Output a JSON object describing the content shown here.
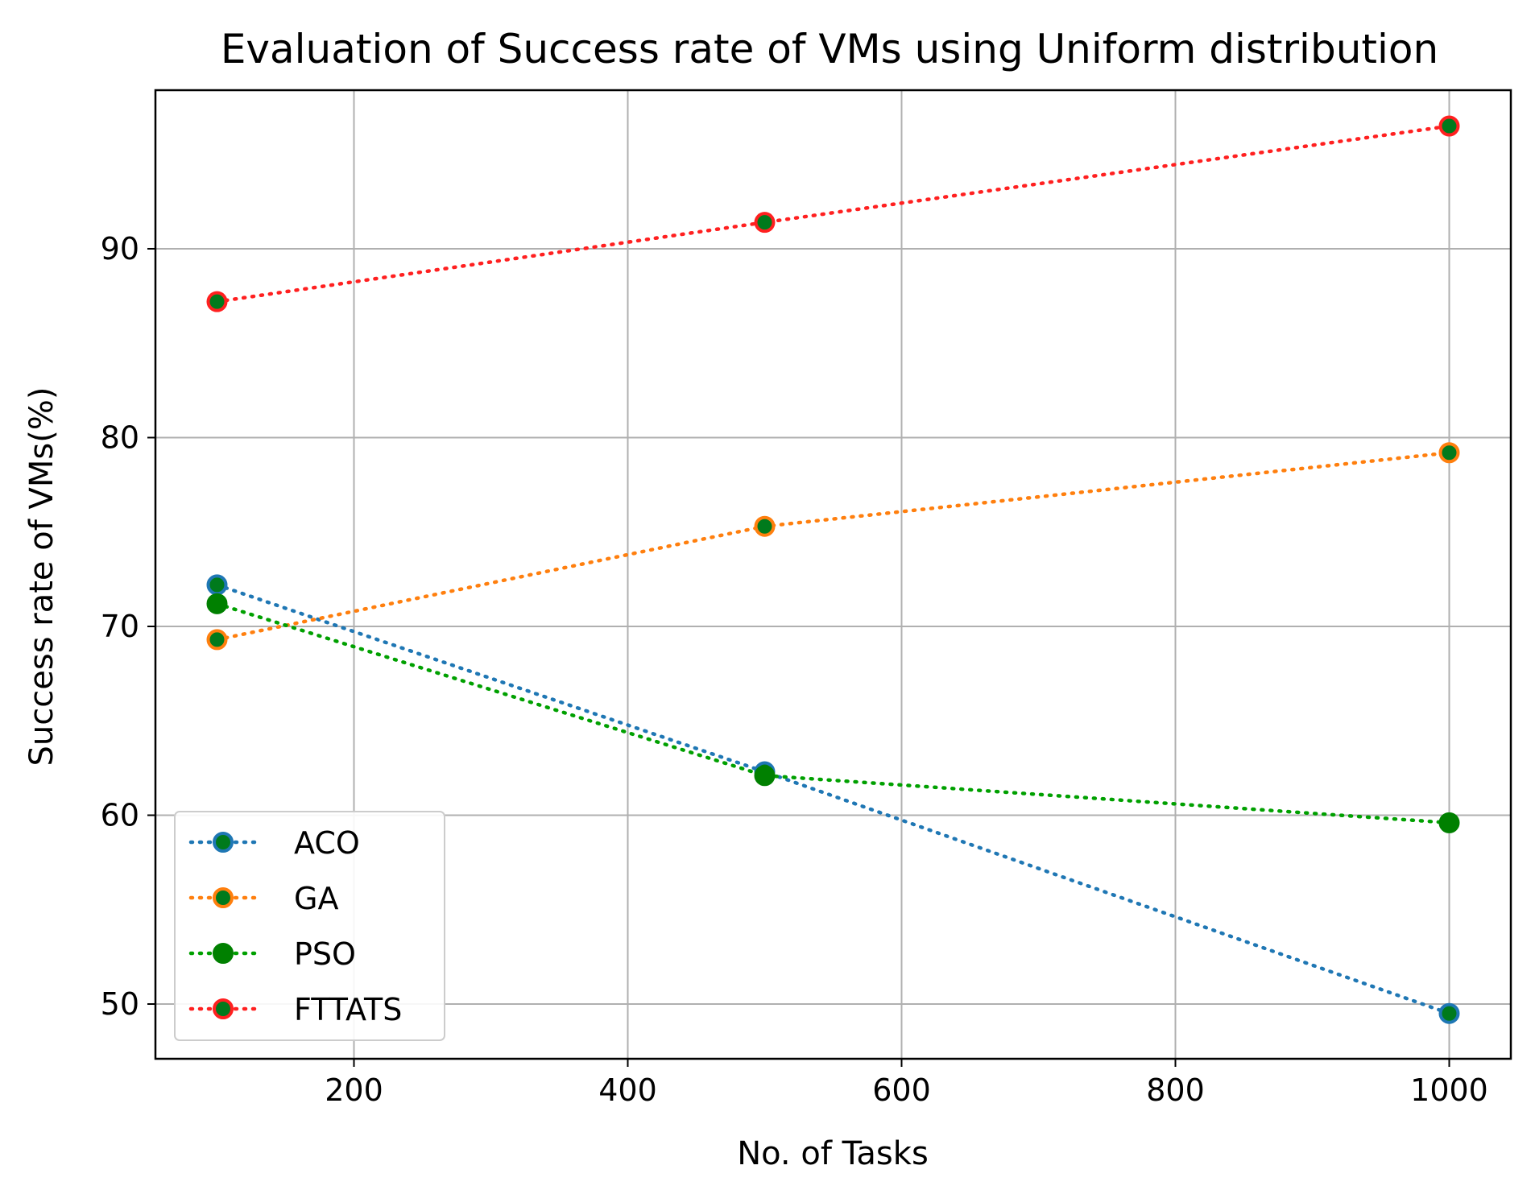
{
  "chart_data": {
    "type": "line",
    "title": "Evaluation of Success rate of VMs using Uniform distribution",
    "xlabel": "No. of Tasks",
    "ylabel": "Success rate of VMs(%)",
    "x": [
      100,
      500,
      1000
    ],
    "xlim": [
      55,
      1045
    ],
    "ylim": [
      47.1,
      98.4
    ],
    "xticks": [
      200,
      400,
      600,
      800,
      1000
    ],
    "yticks": [
      50,
      60,
      70,
      80,
      90
    ],
    "grid": true,
    "legend_position": "lower-left",
    "series": [
      {
        "name": "ACO",
        "values": [
          72.2,
          62.3,
          49.5
        ],
        "color": "#1f77b4",
        "marker_edge": "#1f77b4",
        "marker_face": "#007a1c"
      },
      {
        "name": "GA",
        "values": [
          69.3,
          75.3,
          79.2
        ],
        "color": "#ff7f0e",
        "marker_edge": "#ff7f0e",
        "marker_face": "#007a1c"
      },
      {
        "name": "PSO",
        "values": [
          71.2,
          62.1,
          59.6
        ],
        "color": "#00a000",
        "marker_edge": "#008000",
        "marker_face": "#008000"
      },
      {
        "name": "FTTATS",
        "values": [
          87.2,
          91.4,
          96.5
        ],
        "color": "#ff2020",
        "marker_edge": "#ff2020",
        "marker_face": "#007a1c"
      }
    ]
  }
}
